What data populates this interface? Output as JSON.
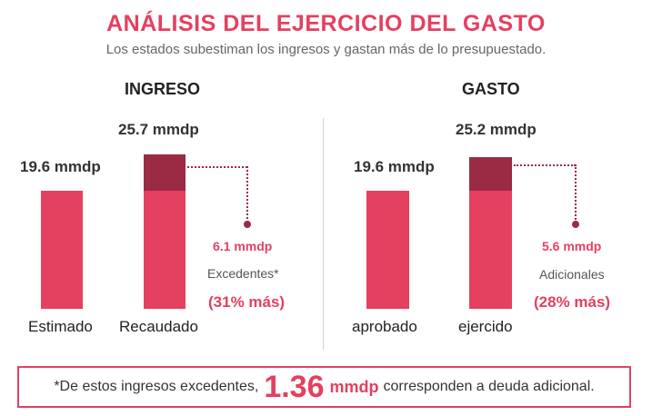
{
  "title": "ANÁLISIS DEL EJERCICIO DEL GASTO",
  "subtitle": "Los estados subestiman los ingresos y gastan más de lo presupuestado.",
  "colors": {
    "primary": "#e4405f",
    "dark": "#9b2a45"
  },
  "chart_data": [
    {
      "type": "bar",
      "stacked": true,
      "title": "INGRESO",
      "categories": [
        "Estimado",
        "Recaudado"
      ],
      "value_labels": [
        "19.6 mmdp",
        "25.7 mmdp"
      ],
      "series": [
        {
          "values": [
            19.6,
            19.6
          ],
          "color": "#e4405f"
        },
        {
          "values": [
            0,
            6.1
          ],
          "color": "#9b2a45"
        }
      ],
      "annotation": {
        "value": "6.1 mmdp",
        "label": "Excedentes*",
        "pct": "(31% más)"
      },
      "ylim": [
        0,
        25.7
      ]
    },
    {
      "type": "bar",
      "stacked": true,
      "title": "GASTO",
      "categories": [
        "aprobado",
        "ejercido"
      ],
      "value_labels": [
        "19.6 mmdp",
        "25.2 mmdp"
      ],
      "series": [
        {
          "values": [
            19.6,
            19.6
          ],
          "color": "#e4405f"
        },
        {
          "values": [
            0,
            5.6
          ],
          "color": "#9b2a45"
        }
      ],
      "annotation": {
        "value": "5.6 mmdp",
        "label": "Adicionales",
        "pct": "(28% más)"
      },
      "ylim": [
        0,
        25.2
      ]
    }
  ],
  "footer": {
    "prefix": "*De estos ingresos excedentes,",
    "amount": "1.36",
    "unit": "mmdp",
    "suffix": "corresponden a deuda adicional."
  }
}
